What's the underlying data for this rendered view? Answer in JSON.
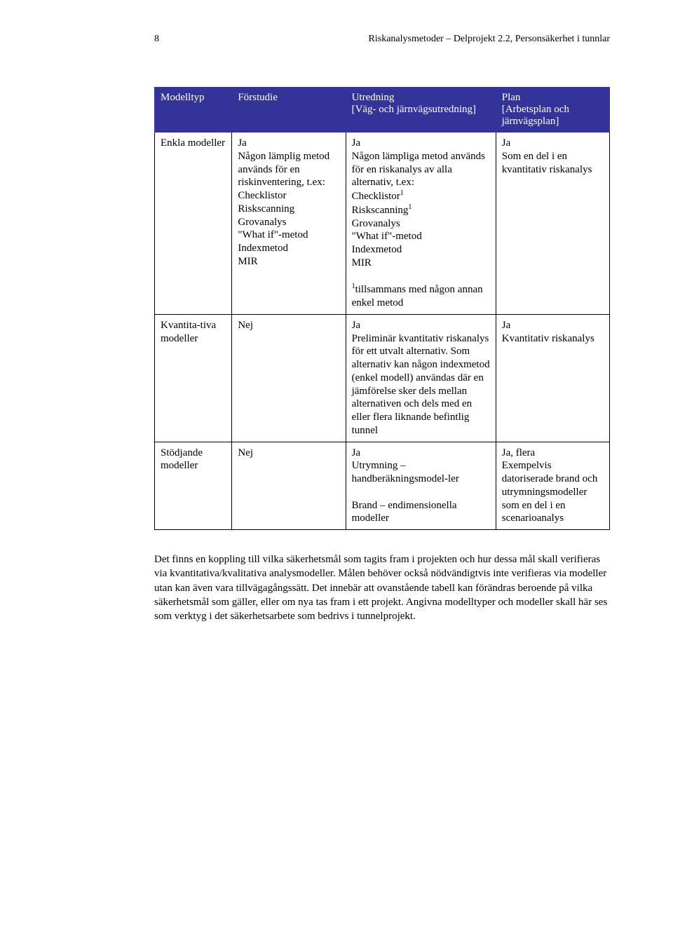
{
  "header": {
    "page_number": "8",
    "doc_title": "Riskanalysmetoder – Delprojekt 2.2, Personsäkerhet i tunnlar"
  },
  "table": {
    "columns": [
      "Modelltyp",
      "Förstudie",
      "Utredning\n[Väg- och järnvägsutredning]",
      "Plan\n[Arbetsplan och järnvägsplan]"
    ],
    "rows": [
      {
        "c0": "Enkla modeller",
        "c1": "Ja\nNågon lämplig metod används för en riskinventering, t.ex:\nChecklistor\nRiskscanning\nGrovanalys\n\"What if\"-metod\nIndexmetod\nMIR",
        "c2": "Ja\nNågon lämpliga metod används för en riskanalys av alla alternativ, t.ex:\nChecklistor¹\nRiskscanning¹\nGrovanalys\n\"What if\"-metod\nIndexmetod\nMIR\n\n¹tillsammans med någon annan enkel metod",
        "c3": "Ja\nSom en del i en kvantitativ riskanalys"
      },
      {
        "c0": "Kvantita-tiva modeller",
        "c1": "Nej",
        "c2": "Ja\nPreliminär kvantitativ riskanalys för ett utvalt alternativ. Som alternativ kan någon indexmetod (enkel modell) användas där en jämförelse sker dels mellan alternativen och dels med en eller flera liknande befintlig tunnel",
        "c3": "Ja\nKvantitativ riskanalys"
      },
      {
        "c0": "Stödjande modeller",
        "c1": "Nej",
        "c2": "Ja\nUtrymning – handberäkningsmodel-ler\n\nBrand – endimensionella modeller",
        "c3": "Ja, flera\nExempelvis datoriserade brand och utrymningsmodeller som en del i en scenarioanalys"
      }
    ]
  },
  "paragraph": "Det finns en koppling till vilka säkerhetsmål som tagits fram i projekten och hur dessa mål skall verifieras via kvantitativa/kvalitativa analysmodeller. Målen behöver också nödvändigtvis inte verifieras via modeller utan kan även vara tillvägagångssätt. Det innebär att ovanstående tabell kan förändras beroende på vilka säkerhetsmål som gäller, eller om nya tas fram i ett projekt. Angivna modelltyper och modeller skall här ses som verktyg i det säkerhetsarbete som bedrivs i tunnelprojekt."
}
